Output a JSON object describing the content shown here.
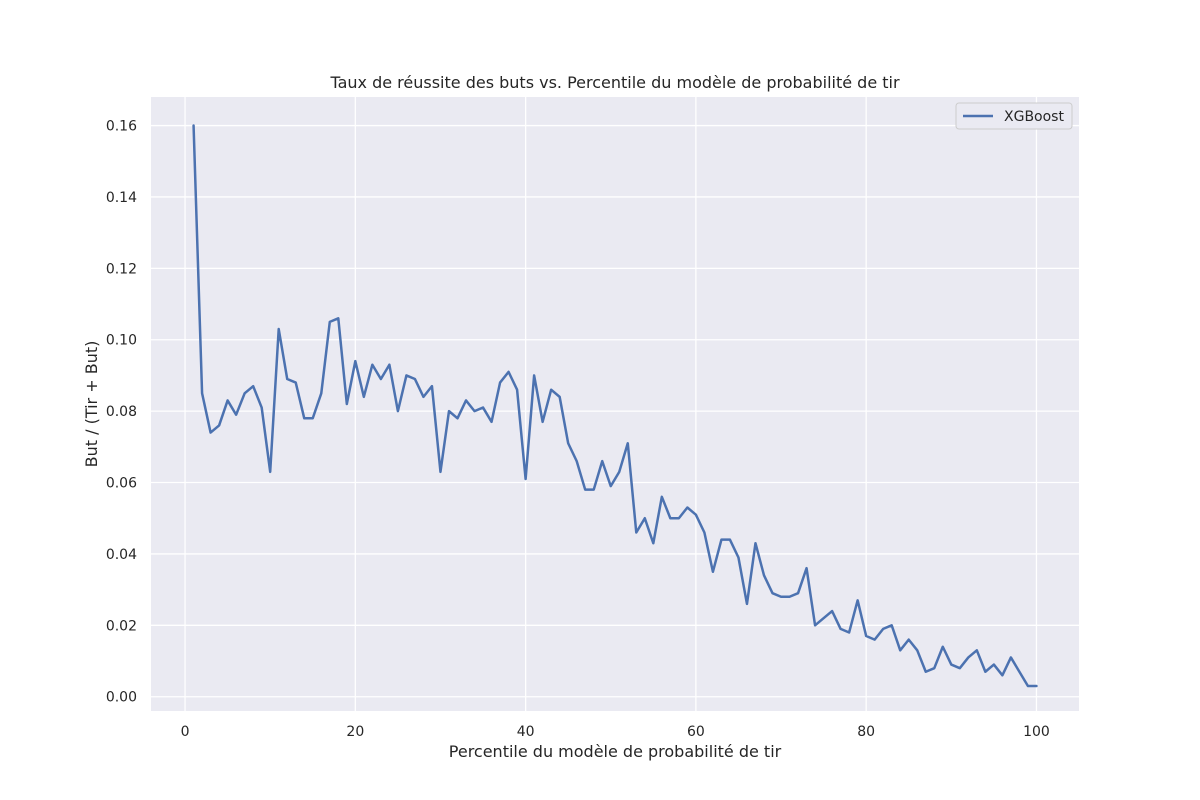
{
  "chart_data": {
    "type": "line",
    "title": "Taux de réussite des buts vs. Percentile du modèle de probabilité de tir",
    "xlabel": "Percentile du modèle de probabilité de tir",
    "ylabel": "But / (Tir + But)",
    "xlim": [
      -4,
      105
    ],
    "ylim": [
      -0.004,
      0.168
    ],
    "x_ticks": [
      0,
      20,
      40,
      60,
      80,
      100
    ],
    "y_ticks": [
      0.0,
      0.02,
      0.04,
      0.06,
      0.08,
      0.1,
      0.12,
      0.14,
      0.16
    ],
    "y_tick_labels": [
      "0.00",
      "0.02",
      "0.04",
      "0.06",
      "0.08",
      "0.10",
      "0.12",
      "0.14",
      "0.16"
    ],
    "grid": true,
    "background": "#eaeaf2",
    "legend_position": "top-right",
    "series": [
      {
        "name": "XGBoost",
        "color": "#4c72b0",
        "x": [
          1,
          2,
          3,
          4,
          5,
          6,
          7,
          8,
          9,
          10,
          11,
          12,
          13,
          14,
          15,
          16,
          17,
          18,
          19,
          20,
          21,
          22,
          23,
          24,
          25,
          26,
          27,
          28,
          29,
          30,
          31,
          32,
          33,
          34,
          35,
          36,
          37,
          38,
          39,
          40,
          41,
          42,
          43,
          44,
          45,
          46,
          47,
          48,
          49,
          50,
          51,
          52,
          53,
          54,
          55,
          56,
          57,
          58,
          59,
          60,
          61,
          62,
          63,
          64,
          65,
          66,
          67,
          68,
          69,
          70,
          71,
          72,
          73,
          74,
          75,
          76,
          77,
          78,
          79,
          80,
          81,
          82,
          83,
          84,
          85,
          86,
          87,
          88,
          89,
          90,
          91,
          92,
          93,
          94,
          95,
          96,
          97,
          98,
          99,
          100
        ],
        "y": [
          0.16,
          0.085,
          0.074,
          0.076,
          0.083,
          0.079,
          0.085,
          0.087,
          0.081,
          0.063,
          0.103,
          0.089,
          0.088,
          0.078,
          0.078,
          0.085,
          0.105,
          0.106,
          0.082,
          0.094,
          0.084,
          0.093,
          0.089,
          0.093,
          0.08,
          0.09,
          0.089,
          0.084,
          0.087,
          0.063,
          0.08,
          0.078,
          0.083,
          0.08,
          0.081,
          0.077,
          0.088,
          0.091,
          0.086,
          0.061,
          0.09,
          0.077,
          0.086,
          0.084,
          0.071,
          0.066,
          0.058,
          0.058,
          0.066,
          0.059,
          0.063,
          0.071,
          0.046,
          0.05,
          0.043,
          0.056,
          0.05,
          0.05,
          0.053,
          0.051,
          0.046,
          0.035,
          0.044,
          0.044,
          0.039,
          0.026,
          0.043,
          0.034,
          0.029,
          0.028,
          0.028,
          0.029,
          0.036,
          0.02,
          0.022,
          0.024,
          0.019,
          0.018,
          0.027,
          0.017,
          0.016,
          0.019,
          0.02,
          0.013,
          0.016,
          0.013,
          0.007,
          0.008,
          0.014,
          0.009,
          0.008,
          0.011,
          0.013,
          0.007,
          0.009,
          0.006,
          0.011,
          0.007,
          0.003,
          0.003
        ]
      }
    ]
  }
}
